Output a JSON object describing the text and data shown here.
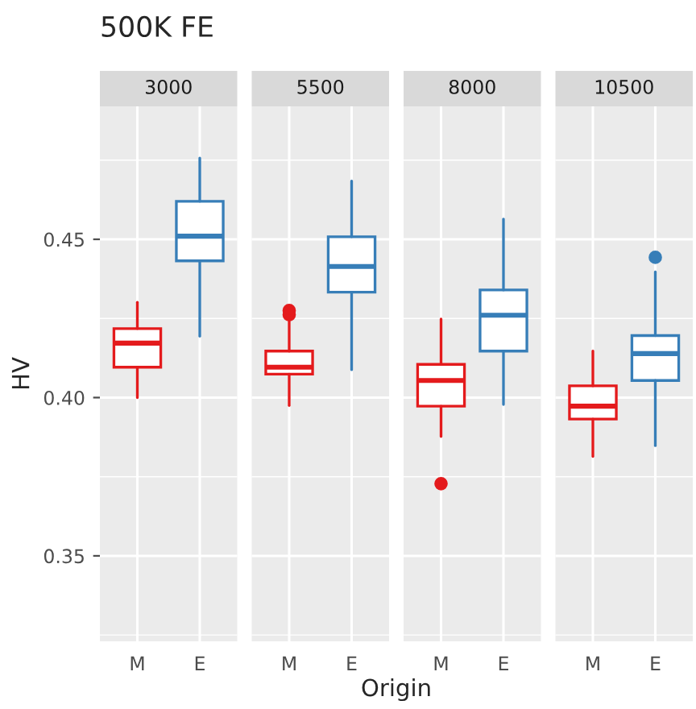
{
  "chart_data": [
    {
      "type": "box",
      "title": "500K FE",
      "subtitle": "3000",
      "ylabel": "HV",
      "xlabel": "Origin",
      "categories": [
        "M",
        "E"
      ],
      "colors": [
        "#e41a1c",
        "#377eb8"
      ],
      "boxes": [
        {
          "low": 0.4,
          "q1": 0.4096,
          "median": 0.4172,
          "q3": 0.4218,
          "high": 0.4301
        },
        {
          "low": 0.4194,
          "q1": 0.4432,
          "median": 0.451,
          "q3": 0.462,
          "high": 0.4757
        }
      ],
      "ylim": [
        0.323,
        0.492
      ],
      "yticks": [
        {
          "value": 0.35,
          "label": "0.35"
        },
        {
          "value": 0.4,
          "label": "0.40"
        },
        {
          "value": 0.45,
          "label": "0.45"
        }
      ],
      "grid": true
    },
    {
      "type": "box",
      "subtitle": "5500",
      "categories": [
        "M",
        "E"
      ],
      "colors": [
        "#e41a1c",
        "#377eb8"
      ],
      "boxes": [
        {
          "low": 0.3975,
          "q1": 0.4074,
          "median": 0.4096,
          "q3": 0.4147,
          "high": 0.425,
          "outliers": [
            0.4262,
            0.4275
          ]
        },
        {
          "low": 0.4088,
          "q1": 0.4333,
          "median": 0.4414,
          "q3": 0.4508,
          "high": 0.4684
        }
      ],
      "ylim": [
        0.323,
        0.492
      ],
      "yticks": [
        0.35,
        0.4,
        0.45
      ],
      "grid": true,
      "tick_labels": "x"
    },
    {
      "type": "box",
      "subtitle": "8000",
      "categories": [
        "M",
        "E"
      ],
      "colors": [
        "#e41a1c",
        "#377eb8"
      ],
      "boxes": [
        {
          "low": 0.3877,
          "q1": 0.3973,
          "median": 0.4054,
          "q3": 0.4105,
          "high": 0.4248,
          "outliers": [
            0.3728
          ]
        },
        {
          "low": 0.3978,
          "q1": 0.4147,
          "median": 0.426,
          "q3": 0.434,
          "high": 0.4564
        }
      ],
      "ylim": [
        0.323,
        0.492
      ],
      "yticks": [
        0.35,
        0.4,
        0.45
      ],
      "grid": true,
      "tick_labels": "x"
    },
    {
      "type": "box",
      "subtitle": "10500",
      "categories": [
        "M",
        "E"
      ],
      "colors": [
        "#e41a1c",
        "#377eb8"
      ],
      "boxes": [
        {
          "low": 0.3814,
          "q1": 0.3932,
          "median": 0.3973,
          "q3": 0.4037,
          "high": 0.4147
        },
        {
          "low": 0.3848,
          "q1": 0.4054,
          "median": 0.4139,
          "q3": 0.4196,
          "high": 0.4397,
          "outliers": [
            0.4443
          ]
        }
      ],
      "ylim": [
        0.323,
        0.492
      ],
      "yticks": [
        0.35,
        0.4,
        0.45
      ],
      "grid": true,
      "tick_labels": "x"
    }
  ]
}
